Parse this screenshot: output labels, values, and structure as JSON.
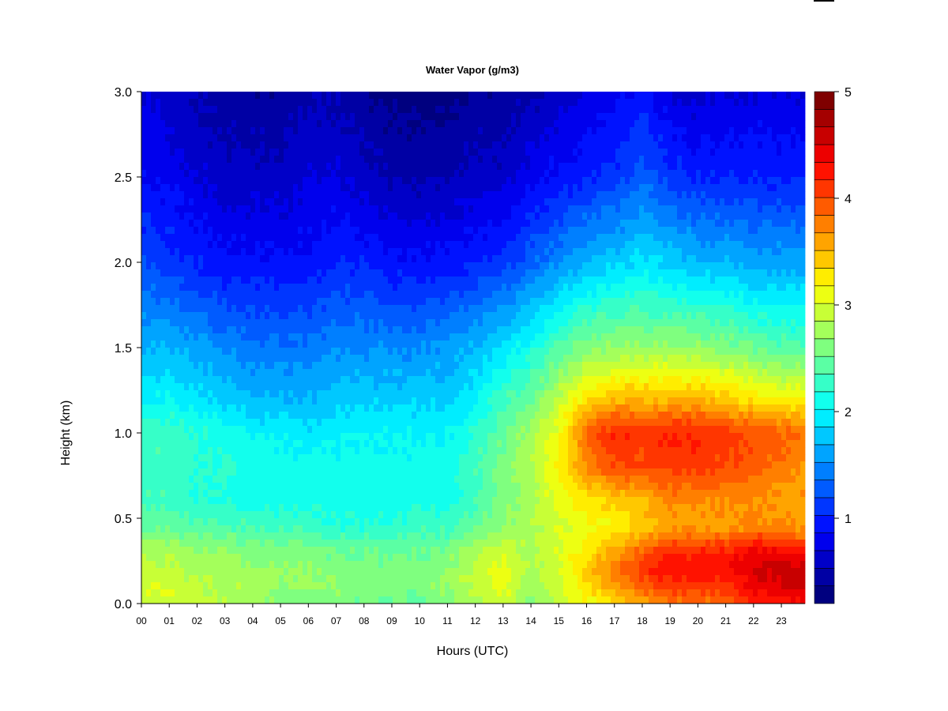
{
  "chart_data": {
    "type": "heatmap",
    "title": "Water Vapor (g/m3)",
    "xlabel": "Hours (UTC)",
    "ylabel": "Height (km)",
    "x_ticks": [
      "00",
      "01",
      "02",
      "03",
      "04",
      "05",
      "06",
      "07",
      "08",
      "09",
      "10",
      "11",
      "12",
      "13",
      "14",
      "15",
      "16",
      "17",
      "18",
      "19",
      "20",
      "21",
      "22",
      "23"
    ],
    "xlim": [
      0,
      23.85
    ],
    "y_ticks": [
      "0.0",
      "0.5",
      "1.0",
      "1.5",
      "2.0",
      "2.5",
      "3.0"
    ],
    "ylim": [
      0,
      3.0
    ],
    "colorbar": {
      "ticks": [
        "1",
        "2",
        "3",
        "4",
        "5"
      ],
      "range": [
        0.2,
        5.0
      ],
      "levels": 24,
      "colors": [
        "#00007f",
        "#0000a4",
        "#0000c8",
        "#0000ed",
        "#0012ff",
        "#0036ff",
        "#005bff",
        "#007fff",
        "#00a4ff",
        "#00c8ff",
        "#00edff",
        "#12ffed",
        "#36ffc8",
        "#5bffa4",
        "#7fff7f",
        "#a4ff5b",
        "#c8ff36",
        "#edff12",
        "#ffed00",
        "#ffc800",
        "#ffa400",
        "#ff7f00",
        "#ff5b00",
        "#ff3600",
        "#ff1200",
        "#ed0000",
        "#c80000",
        "#a40000",
        "#7f0000"
      ]
    },
    "heights_km": [
      0.0,
      0.1,
      0.2,
      0.3,
      0.45,
      0.6,
      0.8,
      1.0,
      1.2,
      1.5,
      2.0,
      2.5,
      3.0
    ],
    "time_hours": [
      0,
      1,
      2,
      3,
      4,
      5,
      6,
      7,
      8,
      9,
      10,
      11,
      12,
      13,
      14,
      15,
      16,
      17,
      18,
      19,
      20,
      21,
      22,
      23,
      23.85
    ],
    "values": [
      [
        3.0,
        3.0,
        2.9,
        2.8,
        2.7,
        2.6,
        2.6,
        2.6,
        2.5,
        2.5,
        2.5,
        2.6,
        2.8,
        3.0,
        2.6,
        2.9,
        3.1,
        3.3,
        3.6,
        3.8,
        3.8,
        3.9,
        4.2,
        4.3,
        4.3
      ],
      [
        3.0,
        3.0,
        2.9,
        2.8,
        2.8,
        2.7,
        2.7,
        2.7,
        2.6,
        2.6,
        2.6,
        2.7,
        2.9,
        3.1,
        2.7,
        3.0,
        3.3,
        3.6,
        3.9,
        4.1,
        4.1,
        4.1,
        4.4,
        4.5,
        4.5
      ],
      [
        2.9,
        2.9,
        2.8,
        2.8,
        2.7,
        2.7,
        2.7,
        2.6,
        2.6,
        2.6,
        2.6,
        2.7,
        2.9,
        3.1,
        2.8,
        3.0,
        3.4,
        3.8,
        4.1,
        4.3,
        4.3,
        4.3,
        4.5,
        4.6,
        4.6
      ],
      [
        2.8,
        2.8,
        2.7,
        2.7,
        2.6,
        2.6,
        2.6,
        2.5,
        2.5,
        2.5,
        2.5,
        2.6,
        2.8,
        3.0,
        2.8,
        3.0,
        3.3,
        3.6,
        3.9,
        4.2,
        4.2,
        4.2,
        4.4,
        4.4,
        4.3
      ],
      [
        2.5,
        2.5,
        2.4,
        2.4,
        2.3,
        2.3,
        2.3,
        2.2,
        2.2,
        2.2,
        2.3,
        2.3,
        2.5,
        2.7,
        2.8,
        3.0,
        3.1,
        3.2,
        3.4,
        3.6,
        3.6,
        3.6,
        3.7,
        3.7,
        3.6
      ],
      [
        2.3,
        2.3,
        2.2,
        2.2,
        2.1,
        2.1,
        2.1,
        2.1,
        2.1,
        2.1,
        2.1,
        2.1,
        2.3,
        2.6,
        2.8,
        3.1,
        3.3,
        3.4,
        3.5,
        3.7,
        3.7,
        3.7,
        3.7,
        3.6,
        3.6
      ],
      [
        2.3,
        2.3,
        2.2,
        2.2,
        2.1,
        2.1,
        2.1,
        2.1,
        2.1,
        2.1,
        2.1,
        2.1,
        2.3,
        2.6,
        2.8,
        3.2,
        3.7,
        4.0,
        4.0,
        4.1,
        4.1,
        4.0,
        3.9,
        3.8,
        3.7
      ],
      [
        2.3,
        2.3,
        2.2,
        2.1,
        2.0,
        2.0,
        1.9,
        2.0,
        2.0,
        2.0,
        2.0,
        2.0,
        2.2,
        2.5,
        2.8,
        3.1,
        3.9,
        4.2,
        4.1,
        4.2,
        4.2,
        4.1,
        4.0,
        3.9,
        3.8
      ],
      [
        2.0,
        2.0,
        1.9,
        1.8,
        1.7,
        1.7,
        1.7,
        1.8,
        1.8,
        1.8,
        1.8,
        1.8,
        2.0,
        2.3,
        2.5,
        2.9,
        3.3,
        3.5,
        3.5,
        3.5,
        3.5,
        3.4,
        3.3,
        3.2,
        3.2
      ],
      [
        1.7,
        1.7,
        1.6,
        1.5,
        1.4,
        1.4,
        1.4,
        1.5,
        1.5,
        1.5,
        1.5,
        1.6,
        1.7,
        1.9,
        2.1,
        2.4,
        2.6,
        2.7,
        2.7,
        2.7,
        2.7,
        2.6,
        2.5,
        2.4,
        2.4
      ],
      [
        1.2,
        1.1,
        1.0,
        0.9,
        0.9,
        0.9,
        0.9,
        1.0,
        1.0,
        0.9,
        0.9,
        0.9,
        1.0,
        1.1,
        1.3,
        1.5,
        1.7,
        1.8,
        1.9,
        1.8,
        1.7,
        1.7,
        1.6,
        1.6,
        1.6
      ],
      [
        0.9,
        0.8,
        0.7,
        0.6,
        0.6,
        0.6,
        0.7,
        0.7,
        0.6,
        0.5,
        0.5,
        0.5,
        0.6,
        0.6,
        0.8,
        0.9,
        1.0,
        1.1,
        1.3,
        1.1,
        1.0,
        1.0,
        1.0,
        1.0,
        1.0
      ],
      [
        0.7,
        0.6,
        0.5,
        0.4,
        0.4,
        0.4,
        0.5,
        0.5,
        0.4,
        0.3,
        0.3,
        0.3,
        0.4,
        0.4,
        0.5,
        0.6,
        0.7,
        0.8,
        0.9,
        0.7,
        0.6,
        0.7,
        0.7,
        0.7,
        0.7
      ]
    ]
  }
}
